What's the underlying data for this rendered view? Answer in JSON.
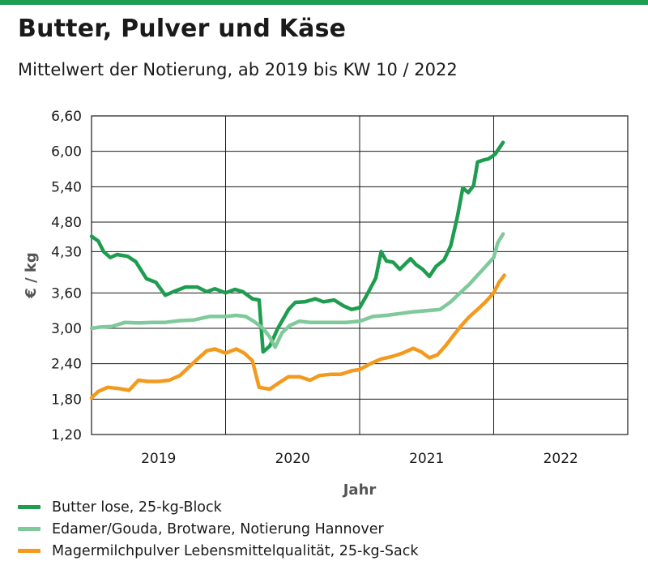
{
  "colors": {
    "accent_bar": "#1e9c4f",
    "grid": "#1a1a1a",
    "axis_text": "#555555"
  },
  "header": {
    "title": "Butter, Pulver und Käse",
    "subtitle": "Mittelwert der Notierung, ab 2019 bis KW 10 / 2022"
  },
  "chart_data": {
    "type": "line",
    "title": "Butter, Pulver und Käse",
    "subtitle": "Mittelwert der Notierung, ab 2019 bis KW 10 / 2022",
    "xlabel": "Jahr",
    "ylabel": "€ / kg",
    "x_categories": [
      "2019",
      "2020",
      "2021",
      "2022"
    ],
    "xlim": [
      2019.0,
      2023.0
    ],
    "ylim": [
      1.2,
      6.6
    ],
    "y_ticks": [
      "6,60",
      "6,00",
      "5,40",
      "4,80",
      "4,30",
      "3,60",
      "3,00",
      "2,40",
      "1,80",
      "1,20"
    ],
    "y_tick_values": [
      6.6,
      6.0,
      5.4,
      4.8,
      4.3,
      3.6,
      3.0,
      2.4,
      1.8,
      1.2
    ],
    "grid": true,
    "legend_position": "bottom-left",
    "series": [
      {
        "name": "Butter lose, 25-kg-Block",
        "color": "#1e9c4f",
        "points": [
          [
            2019.0,
            4.56
          ],
          [
            2019.05,
            4.48
          ],
          [
            2019.09,
            4.3
          ],
          [
            2019.14,
            4.2
          ],
          [
            2019.19,
            4.25
          ],
          [
            2019.27,
            4.22
          ],
          [
            2019.33,
            4.13
          ],
          [
            2019.41,
            3.84
          ],
          [
            2019.48,
            3.78
          ],
          [
            2019.55,
            3.56
          ],
          [
            2019.61,
            3.62
          ],
          [
            2019.7,
            3.7
          ],
          [
            2019.79,
            3.7
          ],
          [
            2019.86,
            3.62
          ],
          [
            2019.92,
            3.67
          ],
          [
            2020.0,
            3.6
          ],
          [
            2020.07,
            3.66
          ],
          [
            2020.13,
            3.62
          ],
          [
            2020.2,
            3.5
          ],
          [
            2020.25,
            3.48
          ],
          [
            2020.28,
            2.6
          ],
          [
            2020.33,
            2.7
          ],
          [
            2020.39,
            3.0
          ],
          [
            2020.47,
            3.32
          ],
          [
            2020.52,
            3.44
          ],
          [
            2020.59,
            3.45
          ],
          [
            2020.67,
            3.5
          ],
          [
            2020.73,
            3.45
          ],
          [
            2020.81,
            3.48
          ],
          [
            2020.88,
            3.38
          ],
          [
            2020.94,
            3.32
          ],
          [
            2021.0,
            3.35
          ],
          [
            2021.05,
            3.55
          ],
          [
            2021.12,
            3.85
          ],
          [
            2021.16,
            4.3
          ],
          [
            2021.2,
            4.14
          ],
          [
            2021.25,
            4.12
          ],
          [
            2021.3,
            4.0
          ],
          [
            2021.38,
            4.18
          ],
          [
            2021.42,
            4.08
          ],
          [
            2021.47,
            4.0
          ],
          [
            2021.52,
            3.88
          ],
          [
            2021.57,
            4.05
          ],
          [
            2021.63,
            4.16
          ],
          [
            2021.68,
            4.4
          ],
          [
            2021.73,
            4.9
          ],
          [
            2021.77,
            5.38
          ],
          [
            2021.81,
            5.3
          ],
          [
            2021.85,
            5.42
          ],
          [
            2021.88,
            5.82
          ],
          [
            2021.92,
            5.85
          ],
          [
            2021.96,
            5.87
          ],
          [
            2022.01,
            5.95
          ],
          [
            2022.07,
            6.15
          ]
        ]
      },
      {
        "name": "Edamer/Gouda, Brotware, Notierung Hannover",
        "color": "#7fc99a",
        "points": [
          [
            2019.0,
            3.0
          ],
          [
            2019.06,
            3.02
          ],
          [
            2019.15,
            3.03
          ],
          [
            2019.25,
            3.1
          ],
          [
            2019.35,
            3.09
          ],
          [
            2019.45,
            3.1
          ],
          [
            2019.55,
            3.1
          ],
          [
            2019.66,
            3.13
          ],
          [
            2019.76,
            3.14
          ],
          [
            2019.88,
            3.2
          ],
          [
            2020.0,
            3.2
          ],
          [
            2020.08,
            3.22
          ],
          [
            2020.15,
            3.2
          ],
          [
            2020.21,
            3.12
          ],
          [
            2020.28,
            3.0
          ],
          [
            2020.33,
            2.85
          ],
          [
            2020.37,
            2.68
          ],
          [
            2020.42,
            2.92
          ],
          [
            2020.48,
            3.05
          ],
          [
            2020.55,
            3.12
          ],
          [
            2020.63,
            3.1
          ],
          [
            2020.72,
            3.1
          ],
          [
            2020.8,
            3.1
          ],
          [
            2020.9,
            3.1
          ],
          [
            2021.0,
            3.12
          ],
          [
            2021.1,
            3.2
          ],
          [
            2021.2,
            3.22
          ],
          [
            2021.3,
            3.25
          ],
          [
            2021.4,
            3.28
          ],
          [
            2021.5,
            3.3
          ],
          [
            2021.6,
            3.32
          ],
          [
            2021.68,
            3.45
          ],
          [
            2021.75,
            3.6
          ],
          [
            2021.82,
            3.75
          ],
          [
            2021.88,
            3.9
          ],
          [
            2021.94,
            4.05
          ],
          [
            2022.0,
            4.2
          ],
          [
            2022.03,
            4.45
          ],
          [
            2022.07,
            4.6
          ]
        ]
      },
      {
        "name": "Magermilchpulver Lebensmittelqualität, 25-kg-Sack",
        "color": "#f39a1e",
        "points": [
          [
            2019.0,
            1.82
          ],
          [
            2019.05,
            1.93
          ],
          [
            2019.12,
            2.0
          ],
          [
            2019.2,
            1.98
          ],
          [
            2019.28,
            1.95
          ],
          [
            2019.35,
            2.12
          ],
          [
            2019.42,
            2.1
          ],
          [
            2019.5,
            2.1
          ],
          [
            2019.58,
            2.12
          ],
          [
            2019.66,
            2.2
          ],
          [
            2019.73,
            2.35
          ],
          [
            2019.8,
            2.5
          ],
          [
            2019.86,
            2.62
          ],
          [
            2019.92,
            2.65
          ],
          [
            2020.0,
            2.58
          ],
          [
            2020.08,
            2.65
          ],
          [
            2020.14,
            2.58
          ],
          [
            2020.2,
            2.45
          ],
          [
            2020.25,
            2.0
          ],
          [
            2020.33,
            1.97
          ],
          [
            2020.4,
            2.08
          ],
          [
            2020.47,
            2.18
          ],
          [
            2020.55,
            2.18
          ],
          [
            2020.63,
            2.12
          ],
          [
            2020.7,
            2.2
          ],
          [
            2020.78,
            2.22
          ],
          [
            2020.86,
            2.22
          ],
          [
            2020.94,
            2.28
          ],
          [
            2021.0,
            2.3
          ],
          [
            2021.08,
            2.4
          ],
          [
            2021.16,
            2.48
          ],
          [
            2021.24,
            2.52
          ],
          [
            2021.32,
            2.58
          ],
          [
            2021.4,
            2.66
          ],
          [
            2021.46,
            2.6
          ],
          [
            2021.52,
            2.5
          ],
          [
            2021.58,
            2.55
          ],
          [
            2021.64,
            2.7
          ],
          [
            2021.7,
            2.88
          ],
          [
            2021.76,
            3.05
          ],
          [
            2021.82,
            3.2
          ],
          [
            2021.88,
            3.32
          ],
          [
            2021.94,
            3.45
          ],
          [
            2022.0,
            3.6
          ],
          [
            2022.04,
            3.78
          ],
          [
            2022.08,
            3.9
          ]
        ]
      }
    ]
  }
}
